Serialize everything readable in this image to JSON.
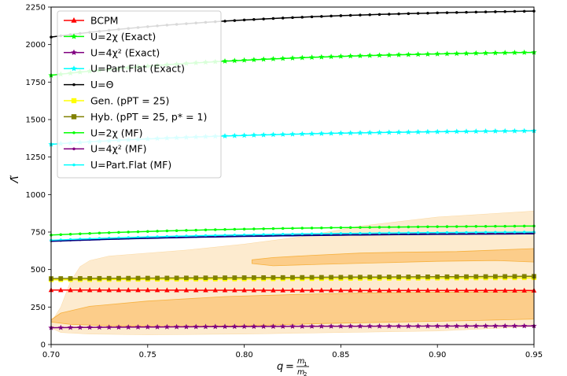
{
  "chart_data": {
    "type": "line",
    "title": "",
    "xlabel": "q = m1/m2",
    "ylabel": "Λ̃",
    "xlim": [
      0.7,
      0.95
    ],
    "ylim": [
      0,
      2250
    ],
    "xticks": [
      0.7,
      0.75,
      0.8,
      0.85,
      0.9,
      0.95
    ],
    "xtick_labels": [
      "0.70",
      "0.75",
      "0.80",
      "0.85",
      "0.90",
      "0.95"
    ],
    "yticks": [
      0,
      250,
      500,
      750,
      1000,
      1250,
      1500,
      1750,
      2000,
      2250
    ],
    "ytick_labels": [
      "0",
      "250",
      "500",
      "750",
      "1000",
      "1250",
      "1500",
      "1750",
      "2000",
      "2250"
    ],
    "grid": false,
    "legend_position": "top-left",
    "x": [
      0.7,
      0.705,
      0.71,
      0.715,
      0.72,
      0.725,
      0.73,
      0.735,
      0.74,
      0.745,
      0.75,
      0.755,
      0.76,
      0.765,
      0.77,
      0.775,
      0.78,
      0.785,
      0.79,
      0.795,
      0.8,
      0.805,
      0.81,
      0.815,
      0.82,
      0.825,
      0.83,
      0.835,
      0.84,
      0.845,
      0.85,
      0.855,
      0.86,
      0.865,
      0.87,
      0.875,
      0.88,
      0.885,
      0.89,
      0.895,
      0.9,
      0.905,
      0.91,
      0.915,
      0.92,
      0.925,
      0.93,
      0.935,
      0.94,
      0.945,
      0.95
    ],
    "series": [
      {
        "name": "BCPM",
        "color": "#ff0000",
        "marker": "triangle",
        "curve": "flat",
        "start": 363,
        "end": 360
      },
      {
        "name": "U=2χ (Exact)",
        "color": "#00ff00",
        "marker": "star",
        "curve": "sat",
        "start": 1795,
        "end": 1948
      },
      {
        "name": "U=4χ² (Exact)",
        "color": "#800080",
        "marker": "star",
        "curve": "sat",
        "start": 112,
        "end": 124
      },
      {
        "name": "U=Part.Flat (Exact)",
        "color": "#00ffff",
        "marker": "star",
        "curve": "sat",
        "start": 1335,
        "end": 1425
      },
      {
        "name": "U=Θ",
        "color": "#000000",
        "marker": "dot",
        "curve": "sat",
        "start": 2050,
        "end": 2223
      },
      {
        "name": "Gen. (pPT = 25)",
        "color": "#ffff00",
        "marker": "square",
        "curve": "lin",
        "start": 432,
        "end": 445
      },
      {
        "name": "Hyb. (pPT = 25, p* = 1)",
        "color": "#808000",
        "marker": "square",
        "curve": "lin",
        "start": 440,
        "end": 455
      },
      {
        "name": "U=2χ (MF)",
        "color": "#00ff00",
        "marker": "dot",
        "curve": "sat",
        "start": 730,
        "end": 790
      },
      {
        "name": "U=4χ² (MF)",
        "color": "#800080",
        "marker": "dot",
        "curve": "sat",
        "start": 692,
        "end": 745
      },
      {
        "name": "U=Part.Flat (MF)",
        "color": "#00ffff",
        "marker": "dot",
        "curve": "sat",
        "start": 695,
        "end": 750
      },
      {
        "name": "",
        "color": "#000080",
        "marker": "none",
        "curve": "sat",
        "start": 688,
        "end": 738
      }
    ],
    "regions": [
      {
        "level": "outer",
        "color": "#fdebcf",
        "upper": [
          [
            0.7,
            150
          ],
          [
            0.705,
            250
          ],
          [
            0.71,
            420
          ],
          [
            0.715,
            520
          ],
          [
            0.72,
            560
          ],
          [
            0.73,
            590
          ],
          [
            0.75,
            610
          ],
          [
            0.77,
            630
          ],
          [
            0.8,
            670
          ],
          [
            0.83,
            720
          ],
          [
            0.86,
            790
          ],
          [
            0.9,
            850
          ],
          [
            0.95,
            890
          ]
        ],
        "lower": [
          [
            0.95,
            120
          ],
          [
            0.9,
            90
          ],
          [
            0.85,
            80
          ],
          [
            0.8,
            70
          ],
          [
            0.75,
            65
          ],
          [
            0.72,
            70
          ],
          [
            0.705,
            80
          ],
          [
            0.7,
            110
          ]
        ]
      },
      {
        "level": "inner",
        "color": "#fccd8a",
        "upper": [
          [
            0.7,
            165
          ],
          [
            0.705,
            210
          ],
          [
            0.72,
            255
          ],
          [
            0.75,
            290
          ],
          [
            0.79,
            320
          ],
          [
            0.83,
            335
          ],
          [
            0.87,
            345
          ],
          [
            0.91,
            350
          ],
          [
            0.95,
            352
          ]
        ],
        "lower": [
          [
            0.95,
            170
          ],
          [
            0.92,
            160
          ],
          [
            0.88,
            150
          ],
          [
            0.84,
            140
          ],
          [
            0.8,
            125
          ],
          [
            0.76,
            120
          ],
          [
            0.73,
            125
          ],
          [
            0.71,
            135
          ],
          [
            0.7,
            150
          ]
        ]
      },
      {
        "level": "inner",
        "color": "#fccd8a",
        "upper": [
          [
            0.804,
            565
          ],
          [
            0.815,
            580
          ],
          [
            0.835,
            595
          ],
          [
            0.86,
            610
          ],
          [
            0.88,
            615
          ],
          [
            0.91,
            620
          ],
          [
            0.95,
            640
          ]
        ],
        "lower": [
          [
            0.95,
            550
          ],
          [
            0.93,
            560
          ],
          [
            0.9,
            555
          ],
          [
            0.87,
            545
          ],
          [
            0.84,
            535
          ],
          [
            0.815,
            525
          ],
          [
            0.804,
            540
          ]
        ]
      }
    ]
  }
}
